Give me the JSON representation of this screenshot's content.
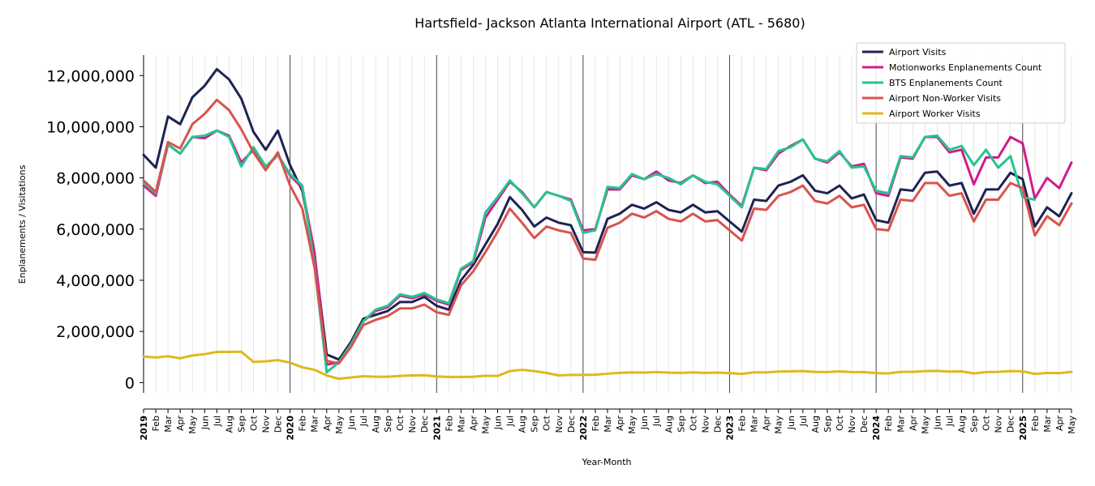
{
  "chart_data": {
    "type": "line",
    "title": "Hartsfield- Jackson Atlanta International Airport (ATL - 5680)",
    "xlabel": "Year-Month",
    "ylabel": "Enplanements / Visitations",
    "ylim": [
      -400000,
      12800000
    ],
    "yticks": [
      0,
      2000000,
      4000000,
      6000000,
      8000000,
      10000000,
      12000000
    ],
    "ytick_labels": [
      "0",
      "2,000,000",
      "4,000,000",
      "6,000,000",
      "8,000,000",
      "10,000,000",
      "12,000,000"
    ],
    "grid": "vertical monthly gridlines; darker lines at January of each year",
    "legend_position": "top-right",
    "x": [
      "2019-01",
      "2019-02",
      "2019-03",
      "2019-04",
      "2019-05",
      "2019-06",
      "2019-07",
      "2019-08",
      "2019-09",
      "2019-10",
      "2019-11",
      "2019-12",
      "2020-01",
      "2020-02",
      "2020-03",
      "2020-04",
      "2020-05",
      "2020-06",
      "2020-07",
      "2020-08",
      "2020-09",
      "2020-10",
      "2020-11",
      "2020-12",
      "2021-01",
      "2021-02",
      "2021-03",
      "2021-04",
      "2021-05",
      "2021-06",
      "2021-07",
      "2021-08",
      "2021-09",
      "2021-10",
      "2021-11",
      "2021-12",
      "2022-01",
      "2022-02",
      "2022-03",
      "2022-04",
      "2022-05",
      "2022-06",
      "2022-07",
      "2022-08",
      "2022-09",
      "2022-10",
      "2022-11",
      "2022-12",
      "2023-01",
      "2023-02",
      "2023-03",
      "2023-04",
      "2023-05",
      "2023-06",
      "2023-07",
      "2023-08",
      "2023-09",
      "2023-10",
      "2023-11",
      "2023-12",
      "2024-01",
      "2024-02",
      "2024-03",
      "2024-04",
      "2024-05",
      "2024-06",
      "2024-07",
      "2024-08",
      "2024-09",
      "2024-10",
      "2024-11",
      "2024-12",
      "2025-01",
      "2025-02",
      "2025-03",
      "2025-04",
      "2025-05"
    ],
    "x_tick_labels": [
      "2019",
      "Feb",
      "Mar",
      "Apr",
      "May",
      "Jun",
      "Jul",
      "Aug",
      "Sep",
      "Oct",
      "Nov",
      "Dec",
      "2020",
      "Feb",
      "Mar",
      "Apr",
      "May",
      "Jun",
      "Jul",
      "Aug",
      "Sep",
      "Oct",
      "Nov",
      "Dec",
      "2021",
      "Feb",
      "Mar",
      "Apr",
      "May",
      "Jun",
      "Jul",
      "Aug",
      "Sep",
      "Oct",
      "Nov",
      "Dec",
      "2022",
      "Feb",
      "Mar",
      "Apr",
      "May",
      "Jun",
      "Jul",
      "Aug",
      "Sep",
      "Oct",
      "Nov",
      "Dec",
      "2023",
      "Feb",
      "Mar",
      "Apr",
      "May",
      "Jun",
      "Jul",
      "Aug",
      "Sep",
      "Oct",
      "Nov",
      "Dec",
      "2024",
      "Feb",
      "Mar",
      "Apr",
      "May",
      "Jun",
      "Jul",
      "Aug",
      "Sep",
      "Oct",
      "Nov",
      "Dec",
      "2025",
      "Feb",
      "Mar",
      "Apr",
      "May"
    ],
    "series": [
      {
        "name": "Airport Visits",
        "color": "#1f2352",
        "values": [
          8900000,
          8400000,
          10400000,
          10100000,
          11150000,
          11600000,
          12250000,
          11850000,
          11100000,
          9800000,
          9100000,
          9850000,
          8500000,
          7500000,
          5000000,
          1100000,
          900000,
          1600000,
          2500000,
          2650000,
          2800000,
          3150000,
          3150000,
          3350000,
          3000000,
          2850000,
          4000000,
          4600000,
          5400000,
          6200000,
          7250000,
          6750000,
          6100000,
          6450000,
          6250000,
          6150000,
          5100000,
          5080000,
          6400000,
          6600000,
          6950000,
          6800000,
          7050000,
          6750000,
          6650000,
          6950000,
          6650000,
          6700000,
          6300000,
          5900000,
          7150000,
          7100000,
          7700000,
          7850000,
          8100000,
          7500000,
          7400000,
          7700000,
          7200000,
          7350000,
          6350000,
          6250000,
          7550000,
          7500000,
          8200000,
          8250000,
          7700000,
          7800000,
          6600000,
          7550000,
          7550000,
          8200000,
          7950000,
          6100000,
          6850000,
          6500000,
          7400000
        ]
      },
      {
        "name": "Motionworks Enplanements Count",
        "color": "#d01c8b",
        "values": [
          7700000,
          7300000,
          9300000,
          8950000,
          9600000,
          9550000,
          9850000,
          9650000,
          8600000,
          9100000,
          8400000,
          8900000,
          8100000,
          7600000,
          5100000,
          700000,
          800000,
          1500000,
          2400000,
          2800000,
          2950000,
          3400000,
          3300000,
          3450000,
          3200000,
          3050000,
          4400000,
          4700000,
          6450000,
          7150000,
          7850000,
          7450000,
          6850000,
          7450000,
          7300000,
          7150000,
          5950000,
          6000000,
          7550000,
          7550000,
          8100000,
          7950000,
          8250000,
          7900000,
          7800000,
          8100000,
          7800000,
          7850000,
          7350000,
          6900000,
          8400000,
          8300000,
          8950000,
          9250000,
          9500000,
          8750000,
          8600000,
          9000000,
          8450000,
          8550000,
          7400000,
          7300000,
          8800000,
          8750000,
          9600000,
          9600000,
          9000000,
          9100000,
          7750000,
          8800000,
          8800000,
          9600000,
          9350000,
          7200000,
          8000000,
          7600000,
          8600000
        ]
      },
      {
        "name": "BTS Enplanements Count",
        "color": "#26c48f",
        "values": [
          7800000,
          7400000,
          9300000,
          8950000,
          9600000,
          9650000,
          9850000,
          9600000,
          8450000,
          9200000,
          8450000,
          8900000,
          8150000,
          7700000,
          4600000,
          400000,
          800000,
          1500000,
          2400000,
          2850000,
          3000000,
          3450000,
          3350000,
          3500000,
          3250000,
          3100000,
          4450000,
          4750000,
          6650000,
          7250000,
          7900000,
          7400000,
          6850000,
          7450000,
          7300000,
          7100000,
          5850000,
          5950000,
          7650000,
          7600000,
          8150000,
          7950000,
          8150000,
          8000000,
          7750000,
          8100000,
          7850000,
          7750000,
          7300000,
          6850000,
          8400000,
          8350000,
          9050000,
          9200000,
          9500000,
          8750000,
          8650000,
          9050000,
          8400000,
          8450000,
          7500000,
          7400000,
          8850000,
          8800000,
          9600000,
          9650000,
          9100000,
          9250000,
          8500000,
          9100000,
          8400000,
          8850000,
          7250000,
          7150000,
          null,
          null,
          null
        ]
      },
      {
        "name": "Airport Non-Worker Visits",
        "color": "#d9534f",
        "values": [
          7900000,
          7450000,
          9400000,
          9150000,
          10100000,
          10500000,
          11050000,
          10650000,
          9900000,
          9000000,
          8300000,
          9000000,
          7700000,
          6800000,
          4500000,
          850000,
          750000,
          1400000,
          2250000,
          2450000,
          2600000,
          2900000,
          2900000,
          3050000,
          2750000,
          2650000,
          3800000,
          4350000,
          5100000,
          5900000,
          6800000,
          6250000,
          5650000,
          6100000,
          5950000,
          5850000,
          4850000,
          4800000,
          6050000,
          6250000,
          6600000,
          6450000,
          6700000,
          6400000,
          6300000,
          6600000,
          6300000,
          6350000,
          5950000,
          5550000,
          6800000,
          6750000,
          7300000,
          7450000,
          7700000,
          7100000,
          7000000,
          7300000,
          6850000,
          6950000,
          6000000,
          5950000,
          7150000,
          7100000,
          7800000,
          7800000,
          7300000,
          7400000,
          6300000,
          7150000,
          7150000,
          7800000,
          7600000,
          5750000,
          6500000,
          6150000,
          7000000
        ]
      },
      {
        "name": "Airport Worker Visits",
        "color": "#e0b81c",
        "values": [
          1020000,
          980000,
          1030000,
          950000,
          1060000,
          1110000,
          1200000,
          1200000,
          1210000,
          810000,
          830000,
          880000,
          780000,
          600000,
          500000,
          280000,
          150000,
          200000,
          250000,
          230000,
          230000,
          260000,
          280000,
          290000,
          240000,
          220000,
          220000,
          230000,
          270000,
          260000,
          450000,
          500000,
          450000,
          380000,
          280000,
          300000,
          300000,
          310000,
          350000,
          380000,
          400000,
          390000,
          410000,
          390000,
          380000,
          400000,
          380000,
          390000,
          370000,
          340000,
          400000,
          400000,
          430000,
          440000,
          450000,
          420000,
          410000,
          440000,
          410000,
          410000,
          370000,
          360000,
          420000,
          420000,
          450000,
          460000,
          430000,
          440000,
          360000,
          410000,
          420000,
          450000,
          440000,
          340000,
          380000,
          370000,
          420000
        ]
      }
    ]
  }
}
